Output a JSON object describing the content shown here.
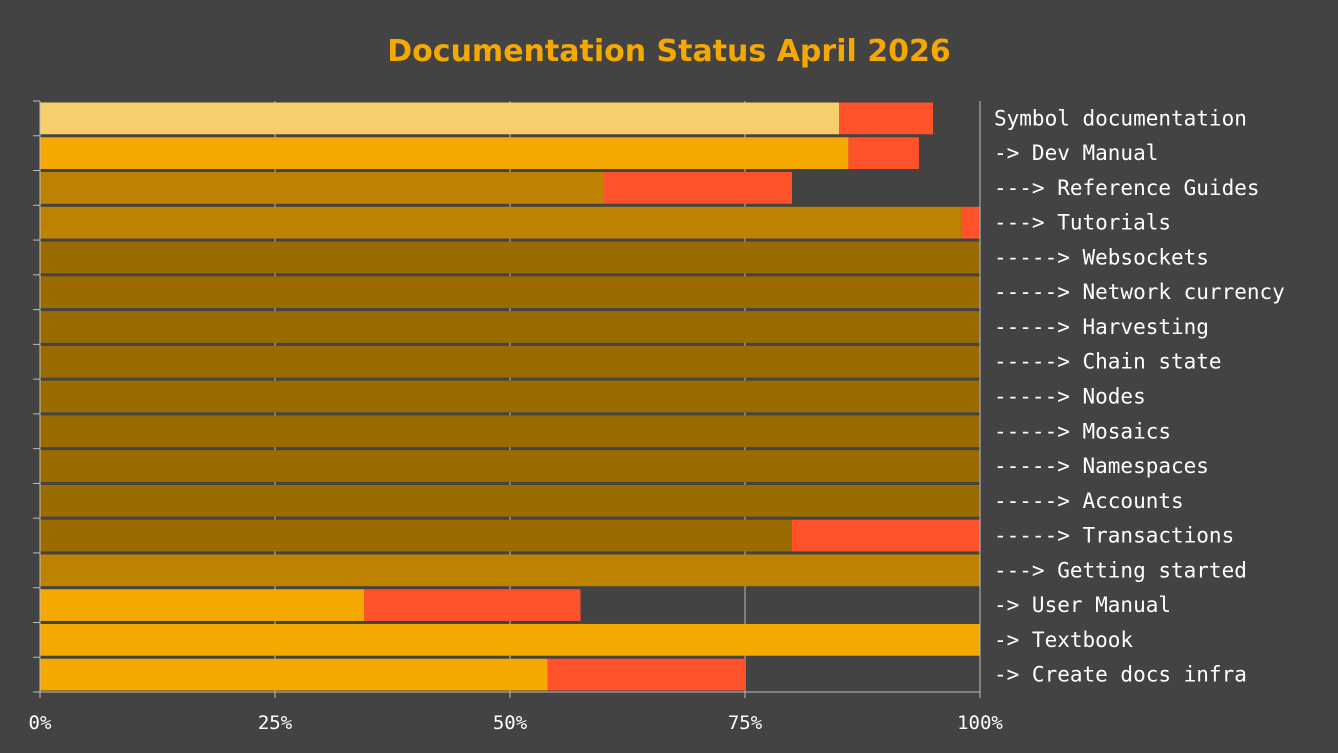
{
  "chart_data": {
    "type": "bar",
    "orientation": "horizontal",
    "stacked": true,
    "title": "Documentation Status April 2026",
    "xlabel": "",
    "ylabel": "",
    "xlim": [
      0,
      100
    ],
    "x_ticks": [
      "0%",
      "25%",
      "50%",
      "75%",
      "100%"
    ],
    "x_tick_values": [
      0,
      25,
      50,
      75,
      100
    ],
    "grid": "x",
    "category_labels_position": "right",
    "categories": [
      "Symbol documentation",
      "-> Dev Manual",
      "---> Reference Guides",
      "---> Tutorials",
      "-----> Websockets",
      "-----> Network currency",
      "-----> Harvesting",
      "-----> Chain state",
      "-----> Nodes",
      "-----> Mosaics",
      "-----> Namespaces",
      "-----> Accounts",
      "-----> Transactions",
      "---> Getting started",
      "-> User Manual",
      "-> Textbook",
      "-> Create docs infra"
    ],
    "levels": [
      0,
      1,
      2,
      2,
      3,
      3,
      3,
      3,
      3,
      3,
      3,
      3,
      3,
      2,
      1,
      1,
      1
    ],
    "series": [
      {
        "values": [
          85,
          86,
          60,
          98,
          100,
          100,
          100,
          100,
          100,
          100,
          100,
          100,
          80,
          100,
          34.5,
          100,
          54
        ]
      },
      {
        "values": [
          10,
          7.5,
          20,
          2,
          0,
          0,
          0,
          0,
          0,
          0,
          0,
          0,
          20,
          0,
          23,
          0,
          21
        ]
      }
    ],
    "colors": {
      "background": "#434343",
      "title": "#f5a800",
      "level_0": "#f7ce6c",
      "level_1": "#f5a800",
      "level_2": "#bd8300",
      "level_3": "#9a6b00",
      "remaining": "#ff522b",
      "grid": "#bdbdbd",
      "text": "#ffffff"
    }
  }
}
